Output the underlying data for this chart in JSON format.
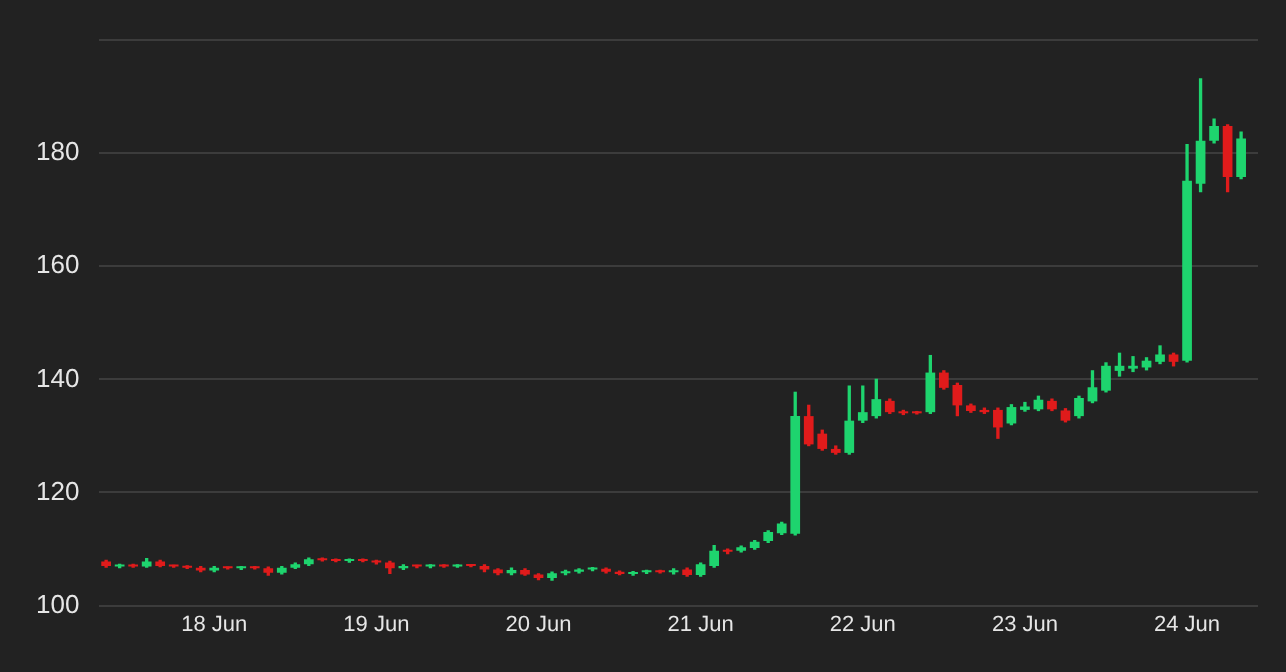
{
  "chart_data": {
    "type": "candlestick",
    "x": [
      "--06-17T08:00",
      "--06-17T10:00",
      "--06-17T12:00",
      "--06-17T14:00",
      "--06-17T16:00",
      "--06-17T18:00",
      "--06-17T20:00",
      "--06-17T22:00",
      "--06-18T00:00",
      "--06-18T02:00",
      "--06-18T04:00",
      "--06-18T06:00",
      "--06-18T08:00",
      "--06-18T10:00",
      "--06-18T12:00",
      "--06-18T14:00",
      "--06-18T16:00",
      "--06-18T18:00",
      "--06-18T20:00",
      "--06-18T22:00",
      "--06-19T00:00",
      "--06-19T02:00",
      "--06-19T04:00",
      "--06-19T06:00",
      "--06-19T08:00",
      "--06-19T10:00",
      "--06-19T12:00",
      "--06-19T14:00",
      "--06-19T16:00",
      "--06-19T18:00",
      "--06-19T20:00",
      "--06-19T22:00",
      "--06-20T00:00",
      "--06-20T02:00",
      "--06-20T04:00",
      "--06-20T06:00",
      "--06-20T08:00",
      "--06-20T10:00",
      "--06-20T12:00",
      "--06-20T14:00",
      "--06-20T16:00",
      "--06-20T18:00",
      "--06-20T20:00",
      "--06-20T22:00",
      "--06-21T00:00",
      "--06-21T02:00",
      "--06-21T04:00",
      "--06-21T06:00",
      "--06-21T08:00",
      "--06-21T10:00",
      "--06-21T12:00",
      "--06-21T14:00",
      "--06-21T16:00",
      "--06-21T18:00",
      "--06-21T20:00",
      "--06-21T22:00",
      "--06-22T00:00",
      "--06-22T02:00",
      "--06-22T04:00",
      "--06-22T06:00",
      "--06-22T08:00",
      "--06-22T10:00",
      "--06-22T12:00",
      "--06-22T14:00",
      "--06-22T16:00",
      "--06-22T18:00",
      "--06-22T20:00",
      "--06-22T22:00",
      "--06-23T00:00",
      "--06-23T02:00",
      "--06-23T04:00",
      "--06-23T06:00",
      "--06-23T08:00",
      "--06-23T10:00",
      "--06-23T12:00",
      "--06-23T14:00",
      "--06-23T16:00",
      "--06-23T18:00",
      "--06-23T20:00",
      "--06-23T22:00",
      "--06-24T00:00",
      "--06-24T02:00",
      "--06-24T04:00",
      "--06-24T06:00",
      "--06-24T08:00"
    ],
    "ohlc": [
      [
        107.8,
        108,
        106.8,
        107
      ],
      [
        106.9,
        107.3,
        106.7,
        107.1
      ],
      [
        107.1,
        107.3,
        106.8,
        106.9
      ],
      [
        106.9,
        108.3,
        106.8,
        107.8
      ],
      [
        107.8,
        108,
        106.9,
        107
      ],
      [
        107,
        107.1,
        106.8,
        106.9
      ],
      [
        106.9,
        107,
        106.6,
        106.7
      ],
      [
        106.7,
        106.9,
        106,
        106.2
      ],
      [
        106.2,
        106.9,
        106,
        106.7
      ],
      [
        106.7,
        106.8,
        106.5,
        106.6
      ],
      [
        106.6,
        106.9,
        106.4,
        106.8
      ],
      [
        106.8,
        106.9,
        106.5,
        106.6
      ],
      [
        106.6,
        106.8,
        105.4,
        105.8
      ],
      [
        105.8,
        106.9,
        105.6,
        106.7
      ],
      [
        106.7,
        107.5,
        106.6,
        107.3
      ],
      [
        107.3,
        108.4,
        107.1,
        108.2
      ],
      [
        108.2,
        108.4,
        107.9,
        108
      ],
      [
        108,
        108.2,
        107.8,
        107.9
      ],
      [
        107.9,
        108.2,
        107.7,
        108.1
      ],
      [
        108.1,
        108.2,
        107.8,
        107.9
      ],
      [
        107.9,
        108,
        107.4,
        107.6
      ],
      [
        107.6,
        107.8,
        105.7,
        106.6
      ],
      [
        106.6,
        107.2,
        106.4,
        107
      ],
      [
        107,
        107.1,
        106.7,
        106.9
      ],
      [
        106.9,
        107.2,
        106.7,
        107.1
      ],
      [
        107.1,
        107.2,
        106.8,
        106.9
      ],
      [
        106.9,
        107.2,
        106.8,
        107.1
      ],
      [
        107.1,
        107.2,
        106.9,
        107
      ],
      [
        107,
        107.2,
        106,
        106.4
      ],
      [
        106.4,
        106.5,
        105.5,
        105.7
      ],
      [
        105.7,
        106.6,
        105.5,
        106.3
      ],
      [
        106.3,
        106.5,
        105.4,
        105.5
      ],
      [
        105.5,
        105.6,
        104.6,
        104.9
      ],
      [
        104.9,
        105.9,
        104.5,
        105.7
      ],
      [
        105.7,
        106.2,
        105.5,
        106
      ],
      [
        106,
        106.5,
        105.8,
        106.4
      ],
      [
        106.4,
        106.7,
        106.2,
        106.5
      ],
      [
        106.5,
        106.6,
        105.8,
        106
      ],
      [
        106,
        106.1,
        105.5,
        105.6
      ],
      [
        105.6,
        106,
        105.4,
        105.9
      ],
      [
        105.9,
        106.2,
        105.7,
        106.1
      ],
      [
        106.1,
        106.2,
        105.8,
        105.9
      ],
      [
        105.9,
        106.5,
        105.6,
        106.2
      ],
      [
        106.4,
        106.6,
        105.2,
        105.4
      ],
      [
        105.4,
        107.5,
        105.2,
        107.3
      ],
      [
        107,
        110.6,
        106.8,
        109.7
      ],
      [
        109.8,
        110,
        109.2,
        109.5
      ],
      [
        109.7,
        110.5,
        109.5,
        110.3
      ],
      [
        110.2,
        111.5,
        110,
        111.3
      ],
      [
        111.4,
        113.2,
        111.2,
        113
      ],
      [
        112.8,
        114.7,
        112.6,
        114.5
      ],
      [
        112.7,
        137.7,
        112.5,
        133.5
      ],
      [
        133.5,
        135.4,
        128.3,
        128.5
      ],
      [
        130.4,
        131,
        127.5,
        127.7
      ],
      [
        127.7,
        128.2,
        126.8,
        127
      ],
      [
        127,
        138.8,
        126.8,
        132.7
      ],
      [
        132.7,
        138.8,
        132.4,
        134.2
      ],
      [
        133.5,
        140,
        133.2,
        136.5
      ],
      [
        136.2,
        136.5,
        134,
        134.2
      ],
      [
        134.2,
        134.5,
        133.8,
        134
      ],
      [
        134.1,
        134.3,
        133.9,
        134
      ],
      [
        134.2,
        144.2,
        134,
        141.2
      ],
      [
        141.2,
        141.5,
        138.3,
        138.5
      ],
      [
        139,
        139.3,
        133.6,
        135.4
      ],
      [
        135.4,
        135.6,
        134.2,
        134.4
      ],
      [
        134.6,
        134.9,
        134,
        134.2
      ],
      [
        134.6,
        134.9,
        129.6,
        131.5
      ],
      [
        132.2,
        135.5,
        132,
        135.1
      ],
      [
        134.6,
        135.9,
        134.4,
        135.2
      ],
      [
        134.7,
        137,
        134.5,
        136.4
      ],
      [
        136.2,
        136.5,
        134.5,
        134.7
      ],
      [
        134.5,
        134.8,
        132.5,
        132.7
      ],
      [
        133.5,
        137,
        133.2,
        136.7
      ],
      [
        136.1,
        141.5,
        135.9,
        138.6
      ],
      [
        138,
        142.9,
        137.8,
        142.4
      ],
      [
        141.5,
        144.6,
        140.6,
        142.4
      ],
      [
        141.9,
        144,
        141.4,
        142.4
      ],
      [
        142.1,
        143.8,
        141.7,
        143.3
      ],
      [
        143.1,
        145.9,
        142.8,
        144.4
      ],
      [
        144.4,
        144.6,
        142.4,
        143.1
      ],
      [
        143.3,
        181.5,
        143.1,
        175.1
      ],
      [
        174.6,
        193.1,
        173.2,
        182.2
      ],
      [
        182.2,
        186,
        181.8,
        184.8
      ],
      [
        184.8,
        185,
        173.2,
        175.8
      ],
      [
        175.8,
        183.7,
        175.5,
        182.6
      ]
    ],
    "colors": [
      "#e01b1b",
      "#1ed46e",
      "#e01b1b",
      "#1ed46e",
      "#e01b1b",
      "#e01b1b",
      "#e01b1b",
      "#e01b1b",
      "#1ed46e",
      "#e01b1b",
      "#1ed46e",
      "#e01b1b",
      "#e01b1b",
      "#1ed46e",
      "#1ed46e",
      "#1ed46e",
      "#e01b1b",
      "#e01b1b",
      "#1ed46e",
      "#e01b1b",
      "#e01b1b",
      "#e01b1b",
      "#1ed46e",
      "#e01b1b",
      "#1ed46e",
      "#e01b1b",
      "#1ed46e",
      "#e01b1b",
      "#e01b1b",
      "#e01b1b",
      "#1ed46e",
      "#e01b1b",
      "#e01b1b",
      "#1ed46e",
      "#1ed46e",
      "#1ed46e",
      "#1ed46e",
      "#e01b1b",
      "#e01b1b",
      "#1ed46e",
      "#1ed46e",
      "#e01b1b",
      "#1ed46e",
      "#e01b1b",
      "#1ed46e",
      "#1ed46e",
      "#e01b1b",
      "#1ed46e",
      "#1ed46e",
      "#1ed46e",
      "#1ed46e",
      "#1ed46e",
      "#e01b1b",
      "#e01b1b",
      "#e01b1b",
      "#1ed46e",
      "#1ed46e",
      "#1ed46e",
      "#e01b1b",
      "#e01b1b",
      "#e01b1b",
      "#1ed46e",
      "#e01b1b",
      "#e01b1b",
      "#e01b1b",
      "#e01b1b",
      "#e01b1b",
      "#1ed46e",
      "#1ed46e",
      "#1ed46e",
      "#e01b1b",
      "#e01b1b",
      "#1ed46e",
      "#1ed46e",
      "#1ed46e",
      "#1ed46e",
      "#1ed46e",
      "#1ed46e",
      "#1ed46e",
      "#e01b1b",
      "#1ed46e",
      "#1ed46e",
      "#1ed46e",
      "#e01b1b",
      "#1ed46e"
    ],
    "xlim": [
      "--06-17T07:00",
      "--06-24T10:30"
    ],
    "xticks": [
      {
        "value": "--06-18",
        "label": "18 Jun"
      },
      {
        "value": "--06-19",
        "label": "19 Jun"
      },
      {
        "value": "--06-20",
        "label": "20 Jun"
      },
      {
        "value": "--06-21",
        "label": "21 Jun"
      },
      {
        "value": "--06-22",
        "label": "22 Jun"
      },
      {
        "value": "--06-23",
        "label": "23 Jun"
      },
      {
        "value": "--06-24",
        "label": "24 Jun"
      }
    ],
    "ylim": [
      100,
      200
    ],
    "yticks": [
      100,
      120,
      140,
      160,
      180,
      {
        "value": 200,
        "label": null
      }
    ],
    "grid": "y"
  }
}
